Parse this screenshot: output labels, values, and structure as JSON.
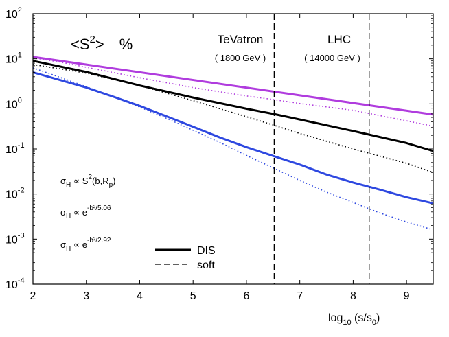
{
  "chart_data": {
    "type": "line",
    "title": "<S²> %",
    "title_parts": {
      "main": "<S",
      "sup": "2",
      "close": ">",
      "unit": "%"
    },
    "xlabel": "log10 (s/s0)",
    "xlabel_parts": {
      "log": "log",
      "log_sub": "10",
      "pre": " (s/s",
      "sub": "0",
      "post": ")"
    },
    "ylabel": "",
    "yscale": "log",
    "xlim": [
      2,
      9.5
    ],
    "ylim": [
      0.0001,
      100
    ],
    "x_ticks": [
      "2",
      "3",
      "4",
      "5",
      "6",
      "7",
      "8",
      "9"
    ],
    "y_ticks": [
      {
        "base": "10",
        "exp": "-4"
      },
      {
        "base": "10",
        "exp": "-3"
      },
      {
        "base": "10",
        "exp": "-2"
      },
      {
        "base": "10",
        "exp": "-1"
      },
      {
        "base": "10",
        "exp": "0"
      },
      {
        "base": "10",
        "exp": "1"
      },
      {
        "base": "10",
        "exp": "2"
      }
    ],
    "vlines": [
      {
        "x": 6.52,
        "label": "TeVatron",
        "sublabel": "( 1800 GeV )"
      },
      {
        "x": 8.3,
        "label": "LHC",
        "sublabel": "( 14000 GeV )"
      }
    ],
    "series": [
      {
        "name": "S²(b,Rp) DIS",
        "color": "#b03cde",
        "style": "solid",
        "x": [
          2,
          9.5
        ],
        "y": [
          11.0,
          0.58
        ]
      },
      {
        "name": "S²(b,Rp) soft",
        "color": "#b03cde",
        "style": "dotted",
        "x": [
          2,
          2.5,
          3,
          4,
          5,
          6,
          6.5,
          7,
          8,
          9,
          9.5
        ],
        "y": [
          10.5,
          8.5,
          6.5,
          3.8,
          2.3,
          1.5,
          1.25,
          1.02,
          0.72,
          0.42,
          0.32
        ]
      },
      {
        "name": "exp(-b²/5.06) DIS",
        "color": "#000000",
        "style": "solid",
        "x": [
          2,
          3,
          4,
          5,
          6,
          6.5,
          7,
          8,
          9,
          9.5
        ],
        "y": [
          9.0,
          5.1,
          2.55,
          1.38,
          0.78,
          0.6,
          0.45,
          0.25,
          0.135,
          0.09
        ]
      },
      {
        "name": "exp(-b²/5.06) soft",
        "color": "#000000",
        "style": "dotted",
        "x": [
          2,
          3,
          4,
          5,
          6,
          6.5,
          7,
          8,
          9,
          9.5
        ],
        "y": [
          7.5,
          4.8,
          2.55,
          1.18,
          0.52,
          0.34,
          0.22,
          0.1,
          0.048,
          0.03
        ]
      },
      {
        "name": "exp(-b²/2.92) DIS",
        "color": "#2e48e0",
        "style": "solid",
        "x": [
          2,
          2.5,
          3,
          3.5,
          4,
          4.5,
          5,
          5.5,
          6,
          6.5,
          7,
          7.5,
          8,
          8.5,
          9,
          9.5
        ],
        "y": [
          5.0,
          3.4,
          2.3,
          1.45,
          0.9,
          0.53,
          0.31,
          0.18,
          0.11,
          0.07,
          0.045,
          0.027,
          0.018,
          0.0125,
          0.0085,
          0.0062
        ]
      },
      {
        "name": "exp(-b²/2.92) soft",
        "color": "#2e48e0",
        "style": "dotted",
        "x": [
          2,
          2.5,
          3,
          3.5,
          4,
          4.5,
          5,
          5.5,
          6,
          6.5,
          7,
          7.5,
          8,
          8.5,
          9,
          9.5
        ],
        "y": [
          6.3,
          3.9,
          2.4,
          1.45,
          0.85,
          0.48,
          0.26,
          0.14,
          0.072,
          0.038,
          0.02,
          0.011,
          0.0065,
          0.0038,
          0.0024,
          0.0016
        ]
      }
    ],
    "formulas": [
      {
        "sigma": "σ",
        "sub": "H",
        "rel": " ∝ S",
        "sup": "2",
        "tail": "(b,R",
        "tail_sub": "p",
        "end": ")"
      },
      {
        "sigma": "σ",
        "sub": "H",
        "rel": " ∝ e",
        "sup": "-b²/5.06"
      },
      {
        "sigma": "σ",
        "sub": "H",
        "rel": " ∝ e",
        "sup": "-b²/2.92"
      }
    ],
    "legend": [
      {
        "label": "DIS",
        "style": "solid"
      },
      {
        "label": "soft",
        "style": "dashed"
      }
    ],
    "legend_position": "bottom-center"
  }
}
